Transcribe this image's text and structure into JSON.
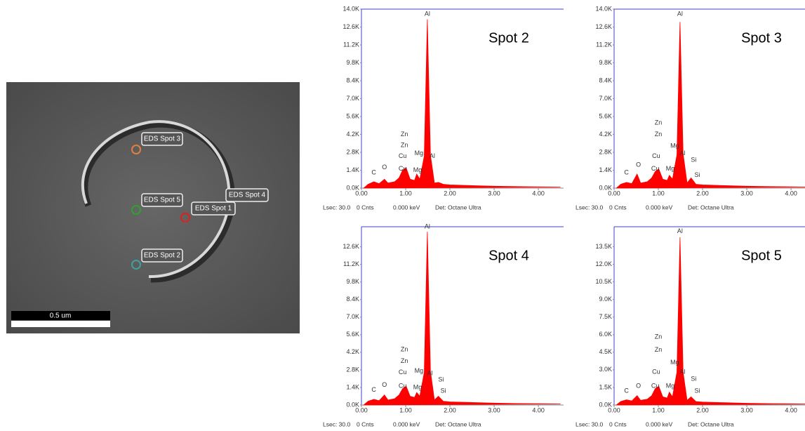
{
  "sem_image": {
    "spots": [
      "EDS Spot 1",
      "EDS Spot 2",
      "EDS Spot 3",
      "EDS Spot 4",
      "EDS Spot 5"
    ],
    "scale_bar": "0.5 um"
  },
  "chart_data": [
    {
      "type": "area",
      "title": "Spot 2",
      "color": "#ff0000",
      "x": [
        0.05,
        0.15,
        0.28,
        0.4,
        0.52,
        0.6,
        0.75,
        0.85,
        0.93,
        1.01,
        1.1,
        1.2,
        1.25,
        1.32,
        1.42,
        1.49,
        1.56,
        1.65,
        1.74,
        1.85,
        2.0,
        2.5,
        3.0,
        3.5,
        4.0,
        4.5
      ],
      "values": [
        0,
        300,
        500,
        350,
        700,
        400,
        500,
        800,
        1400,
        1600,
        700,
        600,
        1100,
        700,
        2500,
        13200,
        2600,
        400,
        450,
        300,
        250,
        200,
        150,
        120,
        100,
        80
      ],
      "xlim": [
        0,
        4.57
      ],
      "ylim": [
        0,
        14000
      ],
      "xticks": [
        {
          "value": 0,
          "label": "0.00"
        },
        {
          "value": 1,
          "label": "1.00"
        },
        {
          "value": 2,
          "label": "2.00"
        },
        {
          "value": 3,
          "label": "3.00"
        },
        {
          "value": 4,
          "label": "4.00"
        }
      ],
      "yticks": [
        {
          "value": 0,
          "label": "0.0K"
        },
        {
          "value": 1400,
          "label": "1.4K"
        },
        {
          "value": 2800,
          "label": "2.8K"
        },
        {
          "value": 4200,
          "label": "4.2K"
        },
        {
          "value": 5600,
          "label": "5.6K"
        },
        {
          "value": 7000,
          "label": "7.0K"
        },
        {
          "value": 8400,
          "label": "8.4K"
        },
        {
          "value": 9800,
          "label": "9.8K"
        },
        {
          "value": 11200,
          "label": "11.2K"
        },
        {
          "value": 12600,
          "label": "12.6K"
        },
        {
          "value": 14000,
          "label": "14.0K"
        }
      ],
      "annotations": [
        {
          "text": "C",
          "x": 0.28,
          "y": 1200
        },
        {
          "text": "O",
          "x": 0.52,
          "y": 1600
        },
        {
          "text": "Cu",
          "x": 0.93,
          "y": 1500
        },
        {
          "text": "Mg",
          "x": 1.27,
          "y": 1400
        },
        {
          "text": "Cu",
          "x": 0.93,
          "y": 2500
        },
        {
          "text": "Mg",
          "x": 1.3,
          "y": 2700
        },
        {
          "text": "Al",
          "x": 1.6,
          "y": 2500
        },
        {
          "text": "Zn",
          "x": 0.97,
          "y": 3350
        },
        {
          "text": "Zn",
          "x": 0.97,
          "y": 4200
        },
        {
          "text": "Al",
          "x": 1.49,
          "y": 13600
        }
      ],
      "footer": [
        "Lsec: 30.0",
        "0 Cnts",
        "0.000 keV",
        "Det: Octane Ultra"
      ]
    },
    {
      "type": "area",
      "title": "Spot 3",
      "color": "#ff0000",
      "x": [
        0.05,
        0.15,
        0.28,
        0.4,
        0.52,
        0.6,
        0.75,
        0.85,
        0.93,
        1.01,
        1.1,
        1.2,
        1.25,
        1.32,
        1.42,
        1.49,
        1.56,
        1.65,
        1.74,
        1.85,
        2.0,
        2.5,
        3.0,
        3.5,
        4.0,
        4.5
      ],
      "values": [
        0,
        300,
        450,
        350,
        1100,
        400,
        500,
        800,
        1300,
        1500,
        700,
        600,
        1000,
        700,
        2600,
        13000,
        2700,
        400,
        800,
        300,
        250,
        200,
        150,
        120,
        100,
        80
      ],
      "xlim": [
        0,
        4.57
      ],
      "ylim": [
        0,
        14000
      ],
      "xticks": [
        {
          "value": 0,
          "label": "0.00"
        },
        {
          "value": 1,
          "label": "1.00"
        },
        {
          "value": 2,
          "label": "2.00"
        },
        {
          "value": 3,
          "label": "3.00"
        },
        {
          "value": 4,
          "label": "4.00"
        }
      ],
      "yticks": [
        {
          "value": 0,
          "label": "0.0K"
        },
        {
          "value": 1400,
          "label": "1.4K"
        },
        {
          "value": 2800,
          "label": "2.8K"
        },
        {
          "value": 4200,
          "label": "4.2K"
        },
        {
          "value": 5600,
          "label": "5.6K"
        },
        {
          "value": 7000,
          "label": "7.0K"
        },
        {
          "value": 8400,
          "label": "8.4K"
        },
        {
          "value": 9800,
          "label": "9.8K"
        },
        {
          "value": 11200,
          "label": "11.2K"
        },
        {
          "value": 12600,
          "label": "12.6K"
        },
        {
          "value": 14000,
          "label": "14.0K"
        }
      ],
      "annotations": [
        {
          "text": "C",
          "x": 0.28,
          "y": 1200
        },
        {
          "text": "O",
          "x": 0.55,
          "y": 1800
        },
        {
          "text": "Cu",
          "x": 0.93,
          "y": 1500
        },
        {
          "text": "Mg",
          "x": 1.27,
          "y": 1500
        },
        {
          "text": "Cu",
          "x": 0.95,
          "y": 2500
        },
        {
          "text": "Al",
          "x": 1.55,
          "y": 2700
        },
        {
          "text": "Si",
          "x": 1.8,
          "y": 2200
        },
        {
          "text": "Si",
          "x": 1.88,
          "y": 1000
        },
        {
          "text": "Mg",
          "x": 1.37,
          "y": 3300
        },
        {
          "text": "Zn",
          "x": 1.0,
          "y": 4200
        },
        {
          "text": "Zn",
          "x": 1.0,
          "y": 5100
        },
        {
          "text": "Al",
          "x": 1.49,
          "y": 13600
        }
      ],
      "footer": [
        "Lsec: 30.0",
        "0 Cnts",
        "0.000 keV",
        "Det: Octane Ultra"
      ]
    },
    {
      "type": "area",
      "title": "Spot 4",
      "color": "#ff0000",
      "x": [
        0.05,
        0.15,
        0.28,
        0.4,
        0.52,
        0.6,
        0.75,
        0.85,
        0.93,
        1.01,
        1.1,
        1.2,
        1.25,
        1.32,
        1.42,
        1.49,
        1.56,
        1.65,
        1.74,
        1.85,
        2.0,
        2.5,
        3.0,
        3.5,
        4.0,
        4.5
      ],
      "values": [
        0,
        300,
        450,
        350,
        800,
        400,
        500,
        800,
        1300,
        1500,
        700,
        600,
        1000,
        700,
        2600,
        13800,
        2700,
        400,
        700,
        300,
        250,
        200,
        150,
        120,
        100,
        80
      ],
      "xlim": [
        0,
        4.57
      ],
      "ylim": [
        0,
        14200
      ],
      "xticks": [
        {
          "value": 0,
          "label": "0.00"
        },
        {
          "value": 1,
          "label": "1.00"
        },
        {
          "value": 2,
          "label": "2.00"
        },
        {
          "value": 3,
          "label": "3.00"
        },
        {
          "value": 4,
          "label": "4.00"
        }
      ],
      "yticks": [
        {
          "value": 0,
          "label": "0.0K"
        },
        {
          "value": 1400,
          "label": "1.4K"
        },
        {
          "value": 2800,
          "label": "2.8K"
        },
        {
          "value": 4200,
          "label": "4.2K"
        },
        {
          "value": 5600,
          "label": "5.6K"
        },
        {
          "value": 7000,
          "label": "7.0K"
        },
        {
          "value": 8400,
          "label": "8.4K"
        },
        {
          "value": 9800,
          "label": "9.8K"
        },
        {
          "value": 11200,
          "label": "11.2K"
        },
        {
          "value": 12600,
          "label": "12.6K"
        }
      ],
      "annotations": [
        {
          "text": "C",
          "x": 0.28,
          "y": 1200
        },
        {
          "text": "O",
          "x": 0.52,
          "y": 1600
        },
        {
          "text": "Cu",
          "x": 0.93,
          "y": 1500
        },
        {
          "text": "Mg",
          "x": 1.27,
          "y": 1400
        },
        {
          "text": "Cu",
          "x": 0.93,
          "y": 2600
        },
        {
          "text": "Mg",
          "x": 1.3,
          "y": 2700
        },
        {
          "text": "Al",
          "x": 1.55,
          "y": 2500
        },
        {
          "text": "Si",
          "x": 1.8,
          "y": 2000
        },
        {
          "text": "Si",
          "x": 1.85,
          "y": 1100
        },
        {
          "text": "Zn",
          "x": 0.97,
          "y": 3500
        },
        {
          "text": "Zn",
          "x": 0.97,
          "y": 4400
        },
        {
          "text": "Al",
          "x": 1.49,
          "y": 14200
        }
      ],
      "footer": [
        "Lsec: 30.0",
        "0 Cnts",
        "0.000 keV",
        "Det: Octane Ultra"
      ]
    },
    {
      "type": "area",
      "title": "Spot 5",
      "color": "#ff0000",
      "x": [
        0.05,
        0.15,
        0.28,
        0.4,
        0.52,
        0.6,
        0.75,
        0.85,
        0.93,
        1.01,
        1.1,
        1.2,
        1.25,
        1.32,
        1.42,
        1.49,
        1.56,
        1.65,
        1.74,
        1.85,
        2.0,
        2.5,
        3.0,
        3.5,
        4.0,
        4.5
      ],
      "values": [
        0,
        300,
        450,
        350,
        800,
        400,
        500,
        800,
        1400,
        1600,
        700,
        600,
        1100,
        700,
        2800,
        14300,
        2800,
        400,
        700,
        300,
        250,
        200,
        150,
        120,
        100,
        80
      ],
      "xlim": [
        0,
        4.57
      ],
      "ylim": [
        0,
        15200
      ],
      "xticks": [
        {
          "value": 0,
          "label": "0.00"
        },
        {
          "value": 1,
          "label": "1.00"
        },
        {
          "value": 2,
          "label": "2.00"
        },
        {
          "value": 3,
          "label": "3.00"
        },
        {
          "value": 4,
          "label": "4.00"
        }
      ],
      "yticks": [
        {
          "value": 0,
          "label": "0.0K"
        },
        {
          "value": 1500,
          "label": "1.5K"
        },
        {
          "value": 3000,
          "label": "3.0K"
        },
        {
          "value": 4500,
          "label": "4.5K"
        },
        {
          "value": 6000,
          "label": "6.0K"
        },
        {
          "value": 7500,
          "label": "7.5K"
        },
        {
          "value": 9000,
          "label": "9.0K"
        },
        {
          "value": 10500,
          "label": "10.5K"
        },
        {
          "value": 12000,
          "label": "12.0K"
        },
        {
          "value": 13500,
          "label": "13.5K"
        }
      ],
      "annotations": [
        {
          "text": "C",
          "x": 0.28,
          "y": 1200
        },
        {
          "text": "O",
          "x": 0.55,
          "y": 1600
        },
        {
          "text": "Cu",
          "x": 0.93,
          "y": 1600
        },
        {
          "text": "Mg",
          "x": 1.27,
          "y": 1600
        },
        {
          "text": "Cu",
          "x": 0.95,
          "y": 2800
        },
        {
          "text": "Al",
          "x": 1.55,
          "y": 2800
        },
        {
          "text": "Si",
          "x": 1.8,
          "y": 2200
        },
        {
          "text": "Si",
          "x": 1.88,
          "y": 1200
        },
        {
          "text": "Mg",
          "x": 1.37,
          "y": 3600
        },
        {
          "text": "Zn",
          "x": 1.0,
          "y": 4700
        },
        {
          "text": "Zn",
          "x": 1.0,
          "y": 5800
        },
        {
          "text": "Al",
          "x": 1.49,
          "y": 14800
        }
      ],
      "footer": [
        "Lsec: 30.0",
        "0 Cnts",
        "0.000 keV",
        "Det: Octane Ultra"
      ]
    }
  ]
}
